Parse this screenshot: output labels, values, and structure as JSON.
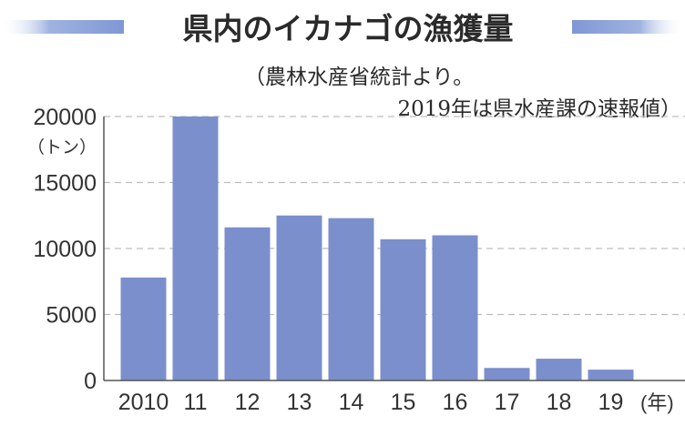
{
  "chart_data": {
    "type": "bar",
    "title": "県内のイカナゴの漁獲量",
    "source_note": [
      "（農林水産省統計より。",
      "2019年は県水産課の速報値）"
    ],
    "y_unit": "（トン）",
    "x_unit": "(年)",
    "categories": [
      "2010",
      "11",
      "12",
      "13",
      "14",
      "15",
      "16",
      "17",
      "18",
      "19"
    ],
    "values": [
      7800,
      20000,
      11600,
      12500,
      12300,
      10700,
      11000,
      950,
      1650,
      820
    ],
    "ylim": [
      0,
      20000
    ],
    "yticks": [
      "0",
      "5000",
      "10000",
      "15000",
      "20000"
    ],
    "grid": true,
    "colors": {
      "bar": "#7b8fcc",
      "grid": "#bdbdbd",
      "title_band": "#9fb3e0"
    }
  }
}
